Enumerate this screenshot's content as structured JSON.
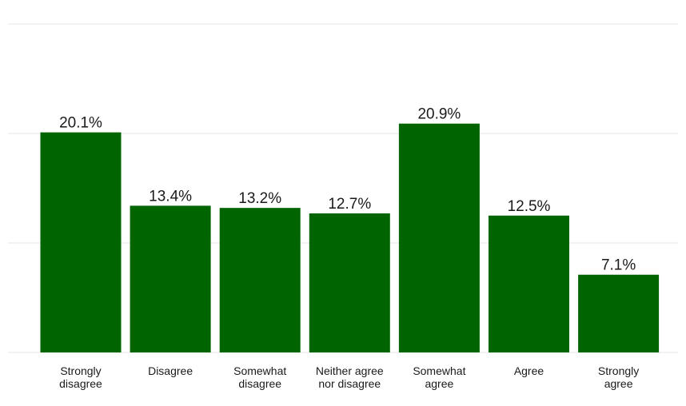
{
  "chart_data": {
    "type": "bar",
    "title": "",
    "xlabel": "",
    "ylabel": "",
    "categories": [
      [
        "Strongly",
        "disagree"
      ],
      [
        "Disagree"
      ],
      [
        "Somewhat",
        "disagree"
      ],
      [
        "Neither agree",
        "nor disagree"
      ],
      [
        "Somewhat",
        "agree"
      ],
      [
        "Agree"
      ],
      [
        "Strongly",
        "agree"
      ]
    ],
    "values": [
      20.1,
      13.4,
      13.2,
      12.7,
      20.9,
      12.5,
      7.1
    ],
    "value_labels": [
      "20.1%",
      "13.4%",
      "13.2%",
      "12.7%",
      "20.9%",
      "12.5%",
      "7.1%"
    ],
    "ylim": [
      0,
      30
    ],
    "y_gridlines": [
      0,
      10,
      20,
      30
    ],
    "y_tick_labels_shown": false,
    "grid": true,
    "legend": "none",
    "bar_color": "#006400"
  }
}
